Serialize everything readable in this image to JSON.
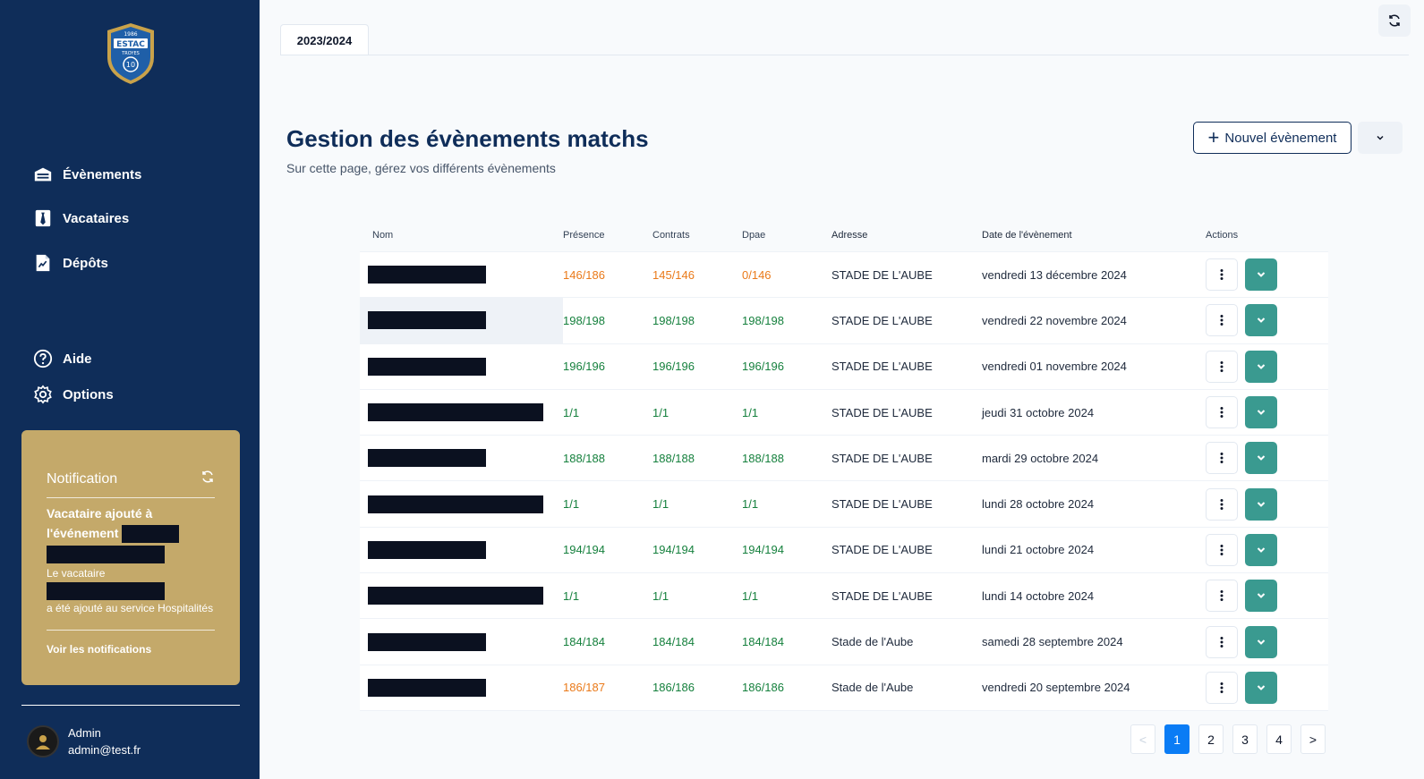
{
  "sidebar": {
    "brand": {
      "year": "1986",
      "name": "ESTAC",
      "city": "TROYES",
      "number": "10"
    },
    "nav": [
      {
        "label": "Évènements",
        "icon": "events-icon"
      },
      {
        "label": "Vacataires",
        "icon": "tie-icon"
      },
      {
        "label": "Dépôts",
        "icon": "document-icon"
      }
    ],
    "secondary": [
      {
        "label": "Aide",
        "icon": "help-icon"
      },
      {
        "label": "Options",
        "icon": "gear-icon"
      }
    ],
    "notification": {
      "title": "Notification",
      "message_title": "Vacataire ajouté à l'événement",
      "message_body_prefix": "Le vacataire",
      "message_body_suffix": "a été ajouté au service Hospitalités",
      "link": "Voir les notifications"
    },
    "user": {
      "name": "Admin",
      "email": "admin@test.fr"
    }
  },
  "main": {
    "tab": "2023/2024",
    "title": "Gestion des évènements matchs",
    "subtitle": "Sur cette page, gérez vos différents évènements",
    "new_button": "Nouvel évènement",
    "columns": [
      "Nom",
      "Présence",
      "Contrats",
      "Dpae",
      "Adresse",
      "Date de l'évènement",
      "Actions"
    ],
    "rows": [
      {
        "presence": "146/186",
        "contrats": "145/146",
        "dpae": "0/146",
        "adresse": "STADE DE L'AUBE",
        "date": "vendredi 13 décembre 2024",
        "pc": "orange",
        "cc": "orange",
        "dc": "orange"
      },
      {
        "presence": "198/198",
        "contrats": "198/198",
        "dpae": "198/198",
        "adresse": "STADE DE L'AUBE",
        "date": "vendredi 22 novembre 2024",
        "pc": "green",
        "cc": "green",
        "dc": "green"
      },
      {
        "presence": "196/196",
        "contrats": "196/196",
        "dpae": "196/196",
        "adresse": "STADE DE L'AUBE",
        "date": "vendredi 01 novembre 2024",
        "pc": "green",
        "cc": "green",
        "dc": "green"
      },
      {
        "presence": "1/1",
        "contrats": "1/1",
        "dpae": "1/1",
        "adresse": "STADE DE L'AUBE",
        "date": "jeudi 31 octobre 2024",
        "pc": "green",
        "cc": "green",
        "dc": "green"
      },
      {
        "presence": "188/188",
        "contrats": "188/188",
        "dpae": "188/188",
        "adresse": "STADE DE L'AUBE",
        "date": "mardi 29 octobre 2024",
        "pc": "green",
        "cc": "green",
        "dc": "green"
      },
      {
        "presence": "1/1",
        "contrats": "1/1",
        "dpae": "1/1",
        "adresse": "STADE DE L'AUBE",
        "date": "lundi 28 octobre 2024",
        "pc": "green",
        "cc": "green",
        "dc": "green"
      },
      {
        "presence": "194/194",
        "contrats": "194/194",
        "dpae": "194/194",
        "adresse": "STADE DE L'AUBE",
        "date": "lundi 21 octobre 2024",
        "pc": "green",
        "cc": "green",
        "dc": "green"
      },
      {
        "presence": "1/1",
        "contrats": "1/1",
        "dpae": "1/1",
        "adresse": "STADE DE L'AUBE",
        "date": "lundi 14 octobre 2024",
        "pc": "green",
        "cc": "green",
        "dc": "green"
      },
      {
        "presence": "184/184",
        "contrats": "184/184",
        "dpae": "184/184",
        "adresse": "Stade de l'Aube",
        "date": "samedi 28 septembre 2024",
        "pc": "green",
        "cc": "green",
        "dc": "green"
      },
      {
        "presence": "186/187",
        "contrats": "186/186",
        "dpae": "186/186",
        "adresse": "Stade de l'Aube",
        "date": "vendredi 20 septembre 2024",
        "pc": "orange",
        "cc": "green",
        "dc": "green"
      }
    ],
    "pagination": {
      "prev": "<",
      "pages": [
        "1",
        "2",
        "3",
        "4"
      ],
      "next": ">",
      "current": "1"
    }
  },
  "colors": {
    "sidebar": "#0f2d59",
    "notification": "#c4a96a",
    "ok": "#15803d",
    "warn": "#ea7a1a",
    "expand": "#3a9a90",
    "page_active": "#0a7cf5"
  }
}
